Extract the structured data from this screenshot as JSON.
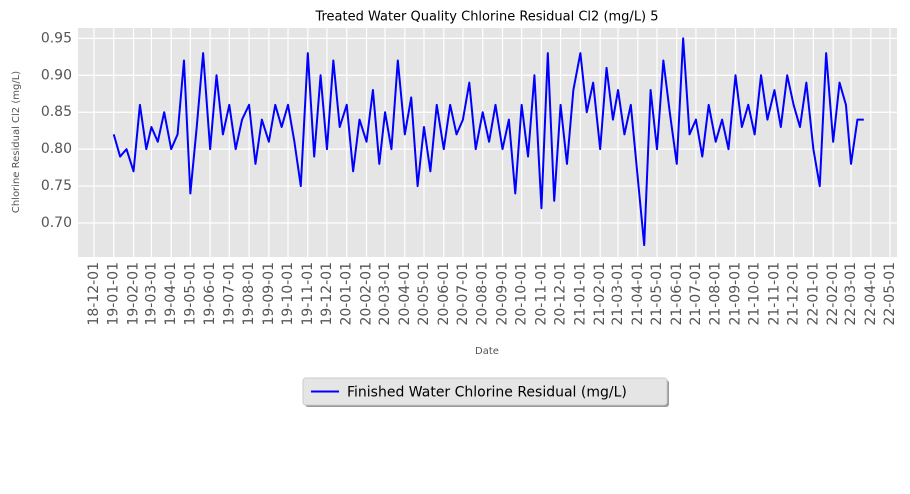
{
  "chart_data": {
    "type": "line",
    "title": "Treated Water Quality Chlorine Residual Cl2 (mg/L) 5",
    "x_label": "Date",
    "y_label": "Chlorine Residual Cl2 (mg/L)",
    "x": [
      "2019-01-01",
      "2019-01-11",
      "2019-01-21",
      "2019-02-01",
      "2019-02-11",
      "2019-02-21",
      "2019-03-01",
      "2019-03-11",
      "2019-03-21",
      "2019-04-01",
      "2019-04-11",
      "2019-04-21",
      "2019-05-01",
      "2019-05-11",
      "2019-05-21",
      "2019-06-01",
      "2019-06-11",
      "2019-06-21",
      "2019-07-01",
      "2019-07-11",
      "2019-07-21",
      "2019-08-01",
      "2019-08-11",
      "2019-08-21",
      "2019-09-01",
      "2019-09-11",
      "2019-09-21",
      "2019-10-01",
      "2019-10-11",
      "2019-10-21",
      "2019-11-01",
      "2019-11-11",
      "2019-11-21",
      "2019-12-01",
      "2019-12-11",
      "2019-12-21",
      "2020-01-01",
      "2020-01-11",
      "2020-01-21",
      "2020-02-01",
      "2020-02-11",
      "2020-02-21",
      "2020-03-01",
      "2020-03-11",
      "2020-03-21",
      "2020-04-01",
      "2020-04-11",
      "2020-04-21",
      "2020-05-01",
      "2020-05-11",
      "2020-05-21",
      "2020-06-01",
      "2020-06-11",
      "2020-06-21",
      "2020-07-01",
      "2020-07-11",
      "2020-07-21",
      "2020-08-01",
      "2020-08-11",
      "2020-08-21",
      "2020-09-01",
      "2020-09-11",
      "2020-09-21",
      "2020-10-01",
      "2020-10-11",
      "2020-10-21",
      "2020-11-01",
      "2020-11-11",
      "2020-11-21",
      "2020-12-01",
      "2020-12-11",
      "2020-12-21",
      "2021-01-01",
      "2021-01-11",
      "2021-01-21",
      "2021-02-01",
      "2021-02-11",
      "2021-02-21",
      "2021-03-01",
      "2021-03-11",
      "2021-03-21",
      "2021-04-01",
      "2021-04-11",
      "2021-04-21",
      "2021-05-01",
      "2021-05-11",
      "2021-05-21",
      "2021-06-01",
      "2021-06-11",
      "2021-06-21",
      "2021-07-01",
      "2021-07-11",
      "2021-07-21",
      "2021-08-01",
      "2021-08-11",
      "2021-08-21",
      "2021-09-01",
      "2021-09-11",
      "2021-09-21",
      "2021-10-01",
      "2021-10-11",
      "2021-10-21",
      "2021-11-01",
      "2021-11-11",
      "2021-11-21",
      "2021-12-01",
      "2021-12-11",
      "2021-12-21",
      "2022-01-01",
      "2022-01-11",
      "2022-01-21",
      "2022-02-01",
      "2022-02-11",
      "2022-02-21",
      "2022-03-01",
      "2022-03-11",
      "2022-03-21"
    ],
    "series": [
      {
        "name": "Finished Water Chlorine Residual (mg/L)",
        "color": "#0000ff",
        "values": [
          0.82,
          0.79,
          0.8,
          0.77,
          0.86,
          0.8,
          0.83,
          0.81,
          0.85,
          0.8,
          0.82,
          0.92,
          0.74,
          0.83,
          0.93,
          0.8,
          0.9,
          0.82,
          0.86,
          0.8,
          0.84,
          0.86,
          0.78,
          0.84,
          0.81,
          0.86,
          0.83,
          0.86,
          0.81,
          0.75,
          0.93,
          0.79,
          0.9,
          0.8,
          0.92,
          0.83,
          0.86,
          0.77,
          0.84,
          0.81,
          0.88,
          0.78,
          0.85,
          0.8,
          0.92,
          0.82,
          0.87,
          0.75,
          0.83,
          0.77,
          0.86,
          0.8,
          0.86,
          0.82,
          0.84,
          0.89,
          0.8,
          0.85,
          0.81,
          0.86,
          0.8,
          0.84,
          0.74,
          0.86,
          0.79,
          0.9,
          0.72,
          0.93,
          0.73,
          0.86,
          0.78,
          0.88,
          0.93,
          0.85,
          0.89,
          0.8,
          0.91,
          0.84,
          0.88,
          0.82,
          0.86,
          0.76,
          0.67,
          0.88,
          0.8,
          0.92,
          0.85,
          0.78,
          0.95,
          0.82,
          0.84,
          0.79,
          0.86,
          0.81,
          0.84,
          0.8,
          0.9,
          0.83,
          0.86,
          0.82,
          0.9,
          0.84,
          0.88,
          0.83,
          0.9,
          0.86,
          0.83,
          0.89,
          0.8,
          0.75,
          0.93,
          0.81,
          0.89,
          0.86,
          0.78,
          0.84,
          0.84
        ]
      }
    ],
    "xlim": [
      "2018-11-06",
      "2022-05-12"
    ],
    "xticks": [
      {
        "value": "2018-12-01",
        "label": "18-12-01"
      },
      {
        "value": "2019-01-01",
        "label": "19-01-01"
      },
      {
        "value": "2019-02-01",
        "label": "19-02-01"
      },
      {
        "value": "2019-03-01",
        "label": "19-03-01"
      },
      {
        "value": "2019-04-01",
        "label": "19-04-01"
      },
      {
        "value": "2019-05-01",
        "label": "19-05-01"
      },
      {
        "value": "2019-06-01",
        "label": "19-06-01"
      },
      {
        "value": "2019-07-01",
        "label": "19-07-01"
      },
      {
        "value": "2019-08-01",
        "label": "19-08-01"
      },
      {
        "value": "2019-09-01",
        "label": "19-09-01"
      },
      {
        "value": "2019-10-01",
        "label": "19-10-01"
      },
      {
        "value": "2019-11-01",
        "label": "19-11-01"
      },
      {
        "value": "2019-12-01",
        "label": "19-12-01"
      },
      {
        "value": "2020-01-01",
        "label": "20-01-01"
      },
      {
        "value": "2020-02-01",
        "label": "20-02-01"
      },
      {
        "value": "2020-03-01",
        "label": "20-03-01"
      },
      {
        "value": "2020-04-01",
        "label": "20-04-01"
      },
      {
        "value": "2020-05-01",
        "label": "20-05-01"
      },
      {
        "value": "2020-06-01",
        "label": "20-06-01"
      },
      {
        "value": "2020-07-01",
        "label": "20-07-01"
      },
      {
        "value": "2020-08-01",
        "label": "20-08-01"
      },
      {
        "value": "2020-09-01",
        "label": "20-09-01"
      },
      {
        "value": "2020-10-01",
        "label": "20-10-01"
      },
      {
        "value": "2020-11-01",
        "label": "20-11-01"
      },
      {
        "value": "2020-12-01",
        "label": "20-12-01"
      },
      {
        "value": "2021-01-01",
        "label": "21-01-01"
      },
      {
        "value": "2021-02-01",
        "label": "21-02-01"
      },
      {
        "value": "2021-03-01",
        "label": "21-03-01"
      },
      {
        "value": "2021-04-01",
        "label": "21-04-01"
      },
      {
        "value": "2021-05-01",
        "label": "21-05-01"
      },
      {
        "value": "2021-06-01",
        "label": "21-06-01"
      },
      {
        "value": "2021-07-01",
        "label": "21-07-01"
      },
      {
        "value": "2021-08-01",
        "label": "21-08-01"
      },
      {
        "value": "2021-09-01",
        "label": "21-09-01"
      },
      {
        "value": "2021-10-01",
        "label": "21-10-01"
      },
      {
        "value": "2021-11-01",
        "label": "21-11-01"
      },
      {
        "value": "2021-12-01",
        "label": "21-12-01"
      },
      {
        "value": "2022-01-01",
        "label": "22-01-01"
      },
      {
        "value": "2022-02-01",
        "label": "22-02-01"
      },
      {
        "value": "2022-03-01",
        "label": "22-03-01"
      },
      {
        "value": "2022-04-01",
        "label": "22-04-01"
      },
      {
        "value": "2022-05-01",
        "label": "22-05-01"
      }
    ],
    "ylim": [
      0.654,
      0.964
    ],
    "yticks": [
      {
        "value": 0.7,
        "label": "0.70"
      },
      0.75,
      {
        "value": 0.8,
        "label": "0.80"
      },
      0.85,
      {
        "value": 0.9,
        "label": "0.90"
      },
      0.95
    ],
    "grid": true,
    "legend": "bottom"
  }
}
